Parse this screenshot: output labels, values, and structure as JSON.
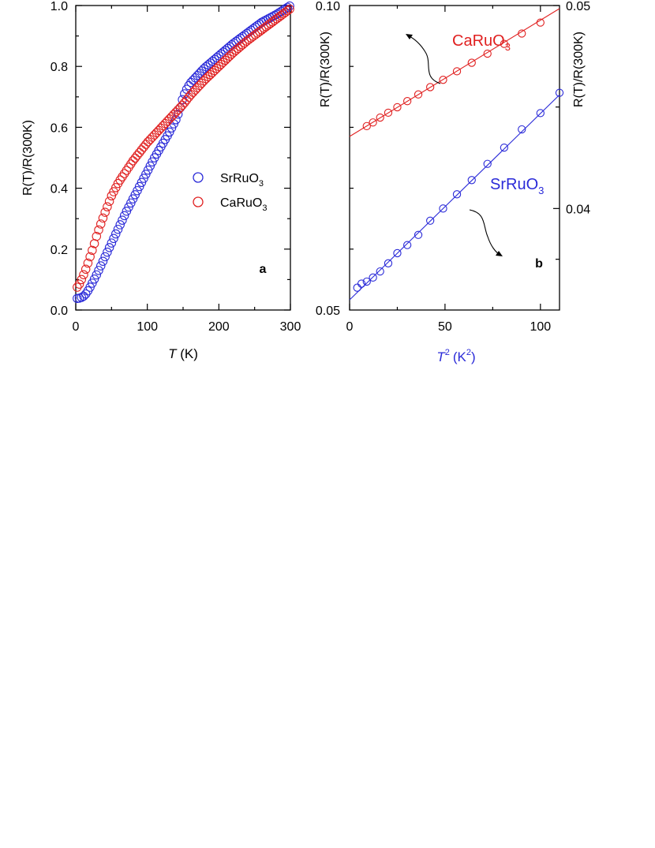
{
  "chart_data": [
    {
      "panel": "a",
      "type": "scatter",
      "xlabel": "T (K)",
      "xlabel_var": "T",
      "xlabel_unit": "(K)",
      "ylabel": "R(T)/R(300K)",
      "xlim": [
        0,
        300
      ],
      "ylim": [
        0,
        1.0
      ],
      "xticks": [
        0,
        100,
        200,
        300
      ],
      "yticks": [
        0.0,
        0.2,
        0.4,
        0.6,
        0.8,
        1.0
      ],
      "xtick_labels": [
        "0",
        "100",
        "200",
        "300"
      ],
      "ytick_labels": [
        "0.0",
        "0.2",
        "0.4",
        "0.6",
        "0.8",
        "1.0"
      ],
      "panel_label": "a",
      "legend": "center-right",
      "grid": false,
      "series": [
        {
          "name": "SrRuO3",
          "label_main": "SrRuO",
          "label_sub": "3",
          "color": "#2a2ad8",
          "x": [
            2,
            5,
            10,
            15,
            20,
            25,
            30,
            35,
            40,
            50,
            60,
            70,
            80,
            90,
            100,
            110,
            120,
            130,
            140,
            145,
            150,
            155,
            160,
            170,
            180,
            190,
            200,
            220,
            240,
            260,
            280,
            300
          ],
          "y": [
            0.038,
            0.039,
            0.043,
            0.055,
            0.075,
            0.097,
            0.12,
            0.145,
            0.17,
            0.22,
            0.27,
            0.32,
            0.365,
            0.41,
            0.455,
            0.5,
            0.54,
            0.58,
            0.625,
            0.655,
            0.7,
            0.725,
            0.745,
            0.77,
            0.795,
            0.815,
            0.835,
            0.875,
            0.91,
            0.945,
            0.97,
            1.0
          ]
        },
        {
          "name": "CaRuO3",
          "label_main": "CaRuO",
          "label_sub": "3",
          "color": "#e02020",
          "x": [
            2,
            5,
            10,
            15,
            20,
            25,
            30,
            40,
            50,
            60,
            70,
            80,
            90,
            100,
            110,
            120,
            130,
            140,
            150,
            160,
            170,
            180,
            200,
            220,
            240,
            260,
            280,
            300
          ],
          "y": [
            0.075,
            0.085,
            0.11,
            0.14,
            0.175,
            0.21,
            0.25,
            0.315,
            0.375,
            0.42,
            0.455,
            0.49,
            0.52,
            0.55,
            0.575,
            0.6,
            0.625,
            0.65,
            0.675,
            0.705,
            0.73,
            0.755,
            0.8,
            0.845,
            0.885,
            0.92,
            0.955,
            0.99
          ]
        }
      ]
    },
    {
      "panel": "b",
      "type": "scatter",
      "xlabel": "T2 (K2)",
      "xlabel_var": "T",
      "xlabel_sup": "2",
      "xlabel_unit_pre": "(K",
      "xlabel_unit_sup": "2",
      "xlabel_unit_post": ")",
      "xlabel_color": "#2a2ad8",
      "ylabel_left": "R(T)/R(300K)",
      "ylabel_right": "R(T)/R(300K)",
      "xlim": [
        0,
        110
      ],
      "ylim_left": [
        0.05,
        0.1
      ],
      "ylim_right": [
        0.035,
        0.05
      ],
      "xticks": [
        0,
        50,
        100
      ],
      "xtick_labels": [
        "0",
        "50",
        "100"
      ],
      "yticks_left_labeled": [
        0.05,
        0.1
      ],
      "ytick_labels_left": [
        "0.05",
        "0.10"
      ],
      "yticks_right_labeled": [
        0.04,
        0.05
      ],
      "ytick_labels_right": [
        "0.04",
        "0.05"
      ],
      "panel_label": "b",
      "grid": false,
      "series": [
        {
          "name": "CaRuO3",
          "label_main": "CaRuO",
          "label_sub": "3",
          "axis": "left",
          "color": "#e02020",
          "fit": {
            "x": [
              0,
              110
            ],
            "y": [
              0.0785,
              0.0995
            ]
          },
          "x": [
            9,
            12.25,
            16,
            20.25,
            25,
            30.25,
            36,
            42.25,
            49,
            56.25,
            64,
            72.25,
            81,
            90.25,
            100
          ],
          "y": [
            0.0802,
            0.0808,
            0.0816,
            0.0824,
            0.0833,
            0.0843,
            0.0854,
            0.0866,
            0.0878,
            0.0892,
            0.0906,
            0.0921,
            0.0937,
            0.0954,
            0.0972
          ]
        },
        {
          "name": "SrRuO3",
          "label_main": "SrRuO",
          "label_sub": "3",
          "axis": "right",
          "color": "#2a2ad8",
          "fit": {
            "x": [
              0,
              110
            ],
            "y": [
              0.0355,
              0.0456
            ]
          },
          "x": [
            4,
            6.25,
            9,
            12.25,
            16,
            20.25,
            25,
            30.25,
            36,
            42.25,
            49,
            56.25,
            64,
            72.25,
            81,
            90.25,
            100,
            110
          ],
          "y": [
            0.0361,
            0.0363,
            0.0364,
            0.0366,
            0.0369,
            0.0373,
            0.0378,
            0.0382,
            0.0387,
            0.0394,
            0.04,
            0.0407,
            0.0414,
            0.0422,
            0.043,
            0.0439,
            0.0447,
            0.0457
          ]
        }
      ]
    }
  ]
}
